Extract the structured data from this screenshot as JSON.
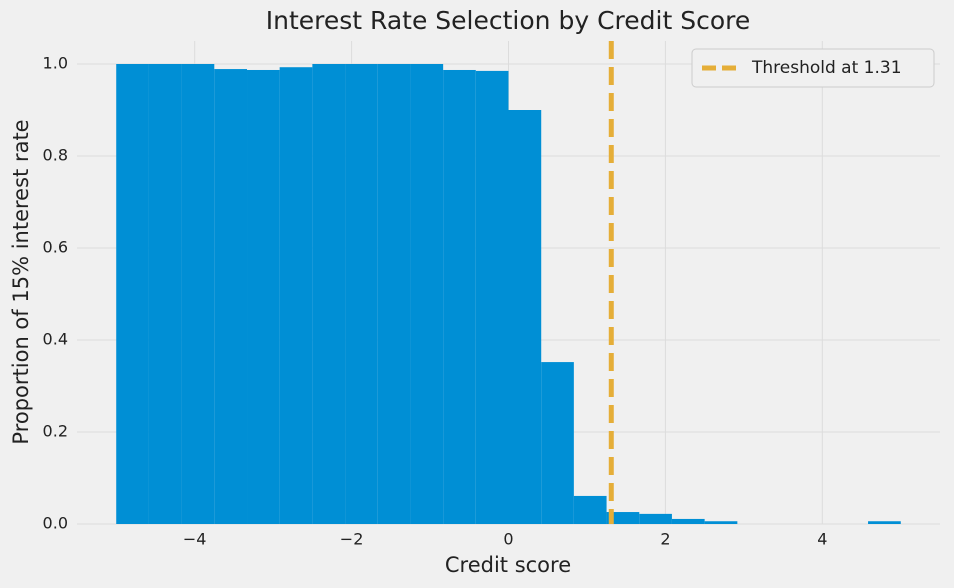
{
  "chart_data": {
    "type": "histogram",
    "title": "Interest Rate Selection by Credit Score",
    "x_label": "Credit score",
    "y_label": "Proportion of 15% interest rate",
    "bins": [
      -5,
      -4.583,
      -4.167,
      -3.75,
      -3.333,
      -2.917,
      -2.5,
      -2.083,
      -1.667,
      -1.25,
      -0.833,
      -0.417,
      0,
      0.417,
      0.833,
      1.25,
      1.667,
      2.083,
      2.5,
      2.917,
      3.333,
      3.75,
      4.167,
      4.583,
      5
    ],
    "values": [
      1.0,
      1.0,
      1.0,
      0.989,
      0.987,
      0.993,
      1.0,
      1.0,
      1.0,
      1.0,
      0.987,
      0.985,
      0.9,
      0.352,
      0.061,
      0.026,
      0.022,
      0.011,
      0.006,
      0,
      0,
      0,
      0,
      0.006
    ],
    "color": "#008fd5",
    "threshold": {
      "value": 1.31,
      "label": "Threshold at 1.31",
      "color": "#e5ae38"
    },
    "xlim": [
      -5.5,
      5.5
    ],
    "ylim": [
      0,
      1.05
    ],
    "xticks": [
      {
        "value": -4,
        "label": "−4"
      },
      {
        "value": -2,
        "label": "−2"
      },
      0,
      2,
      4
    ],
    "yticks": [
      {
        "value": 0,
        "label": "0.0"
      },
      0.2,
      0.4,
      0.6,
      0.8,
      {
        "value": 1,
        "label": "1.0"
      }
    ],
    "grid": true,
    "legend_position": "upper right"
  }
}
